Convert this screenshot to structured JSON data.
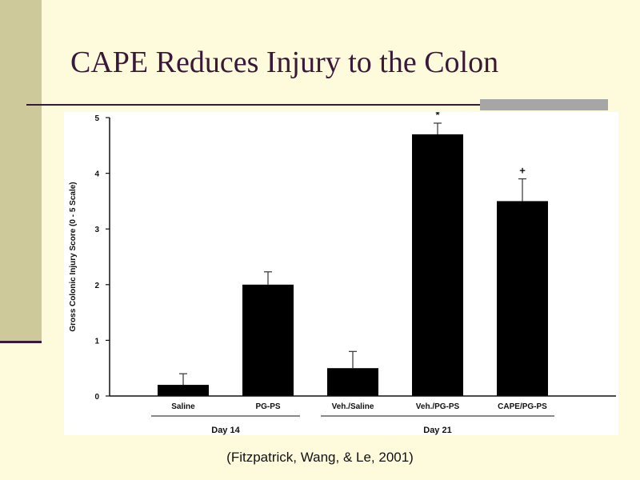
{
  "slide": {
    "title": "CAPE Reduces Injury to the Colon",
    "citation": "(Fitzpatrick, Wang, & Le, 2001)"
  },
  "colors": {
    "background": "#fefbdc",
    "left_bar": "#cdc99a",
    "accent_dark": "#3a1838",
    "rule_block": "#a6a6a6",
    "bar_fill": "#000000"
  },
  "chart_data": {
    "type": "bar",
    "ylabel": "Gross Colonic Injury Score (0 - 5 Scale)",
    "xlabel": "",
    "ylim": [
      0,
      5
    ],
    "yticks": [
      0,
      1,
      2,
      3,
      4,
      5
    ],
    "categories": [
      "Saline",
      "PG-PS",
      "Veh./Saline",
      "Veh./PG-PS",
      "CAPE/PG-PS"
    ],
    "values": [
      0.2,
      2.0,
      0.5,
      4.7,
      3.5
    ],
    "errors": [
      0.2,
      0.23,
      0.3,
      0.2,
      0.4
    ],
    "markers": [
      "",
      "",
      "",
      "*",
      "+"
    ],
    "groups": [
      {
        "label": "Day 14",
        "categories": [
          "Saline",
          "PG-PS"
        ]
      },
      {
        "label": "Day 21",
        "categories": [
          "Veh./Saline",
          "Veh./PG-PS",
          "CAPE/PG-PS"
        ]
      }
    ],
    "grid": false
  }
}
